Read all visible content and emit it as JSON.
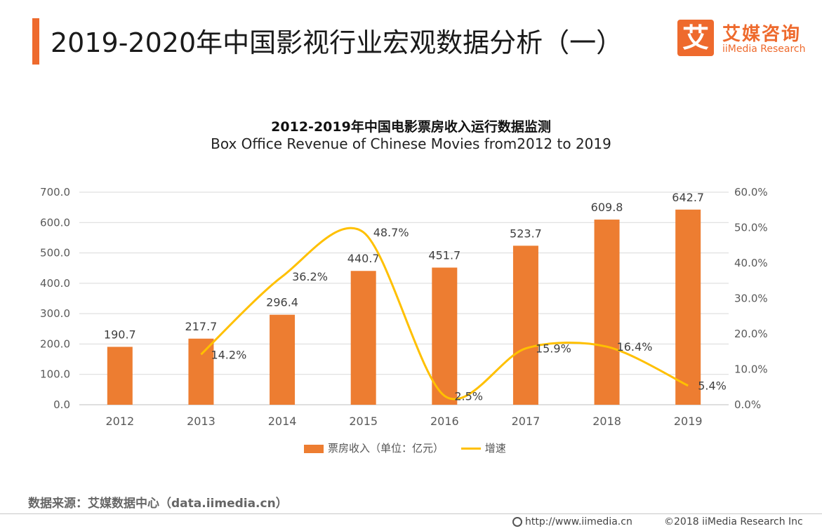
{
  "header": {
    "title": "2019-2020年中国影视行业宏观数据分析（一）",
    "logo_cn": "艾媒咨询",
    "logo_en": "iiMedia Research",
    "logo_glyph": "艾"
  },
  "colors": {
    "accent": "#ee6a2d",
    "bar": "#ed7d31",
    "line": "#ffc000",
    "grid": "#d9d9d9"
  },
  "chart_data": {
    "type": "bar",
    "title": "2012-2019年中国电影票房收入运行数据监测",
    "subtitle": "Box Office Revenue of Chinese Movies from2012 to 2019",
    "categories": [
      "2012",
      "2013",
      "2014",
      "2015",
      "2016",
      "2017",
      "2018",
      "2019"
    ],
    "series": [
      {
        "name": "票房收入（单位：亿元）",
        "type": "bar",
        "axis": "left",
        "values": [
          190.7,
          217.7,
          296.4,
          440.7,
          451.7,
          523.7,
          609.8,
          642.7
        ],
        "labels": [
          "190.7",
          "217.7",
          "296.4",
          "440.7",
          "451.7",
          "523.7",
          "609.8",
          "642.7"
        ]
      },
      {
        "name": "增速",
        "type": "line",
        "axis": "right",
        "x": [
          "2013",
          "2014",
          "2015",
          "2016",
          "2017",
          "2018",
          "2019"
        ],
        "values": [
          14.2,
          36.2,
          48.7,
          2.5,
          15.9,
          16.4,
          5.4
        ],
        "labels": [
          "14.2%",
          "36.2%",
          "48.7%",
          "2.5%",
          "15.9%",
          "16.4%",
          "5.4%"
        ]
      }
    ],
    "y_left": {
      "range": [
        0,
        700
      ],
      "ticks": [
        "0.0",
        "100.0",
        "200.0",
        "300.0",
        "400.0",
        "500.0",
        "600.0",
        "700.0"
      ]
    },
    "y_right": {
      "range": [
        0,
        60
      ],
      "ticks": [
        "0.0%",
        "10.0%",
        "20.0%",
        "30.0%",
        "40.0%",
        "50.0%",
        "60.0%"
      ]
    },
    "grid": true,
    "legend": "bottom"
  },
  "footer": {
    "source": "数据来源：艾媒数据中心（data.iimedia.cn）",
    "url": "http://www.iimedia.cn",
    "copyright": "©2018  iiMedia Research  Inc"
  }
}
